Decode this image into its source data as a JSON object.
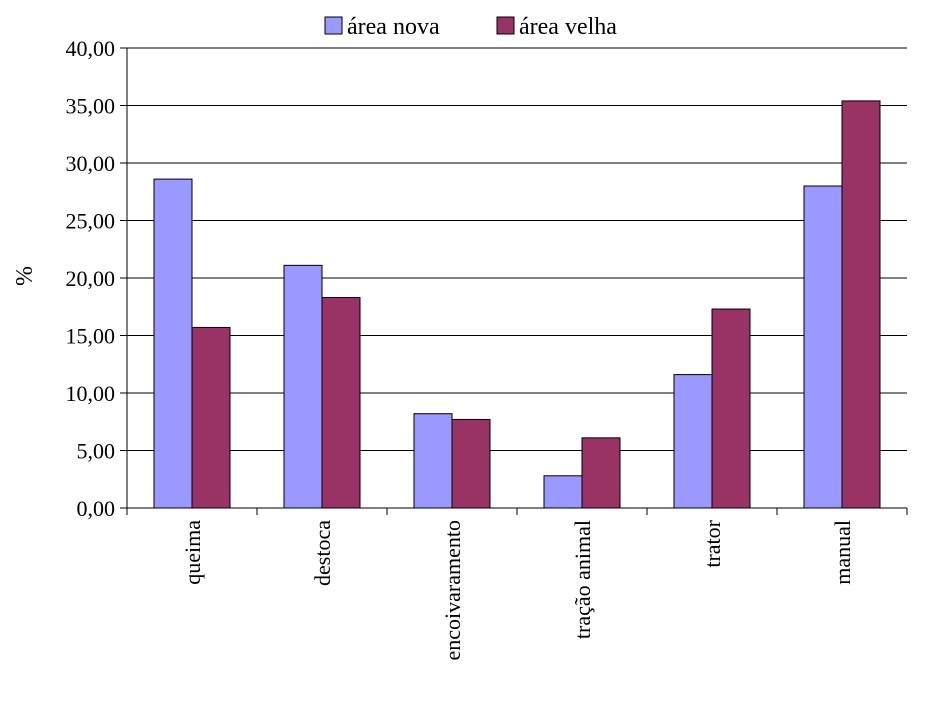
{
  "chart_data": {
    "type": "bar",
    "title": "",
    "xlabel": "",
    "ylabel": "%",
    "ylim": [
      0,
      40
    ],
    "y_ticks": [
      "0,00",
      "5,00",
      "10,00",
      "15,00",
      "20,00",
      "25,00",
      "30,00",
      "35,00",
      "40,00"
    ],
    "grid": true,
    "legend_position": "top",
    "categories": [
      "queima",
      "destoca",
      "encoivaramento",
      "tração animal",
      "trator",
      "manual"
    ],
    "series": [
      {
        "name": "área nova",
        "color": "#9999ff",
        "values": [
          28.6,
          21.1,
          8.2,
          2.8,
          11.6,
          28.0
        ]
      },
      {
        "name": "área velha",
        "color": "#993366",
        "values": [
          15.7,
          18.3,
          7.7,
          6.1,
          17.3,
          35.4
        ]
      }
    ]
  }
}
